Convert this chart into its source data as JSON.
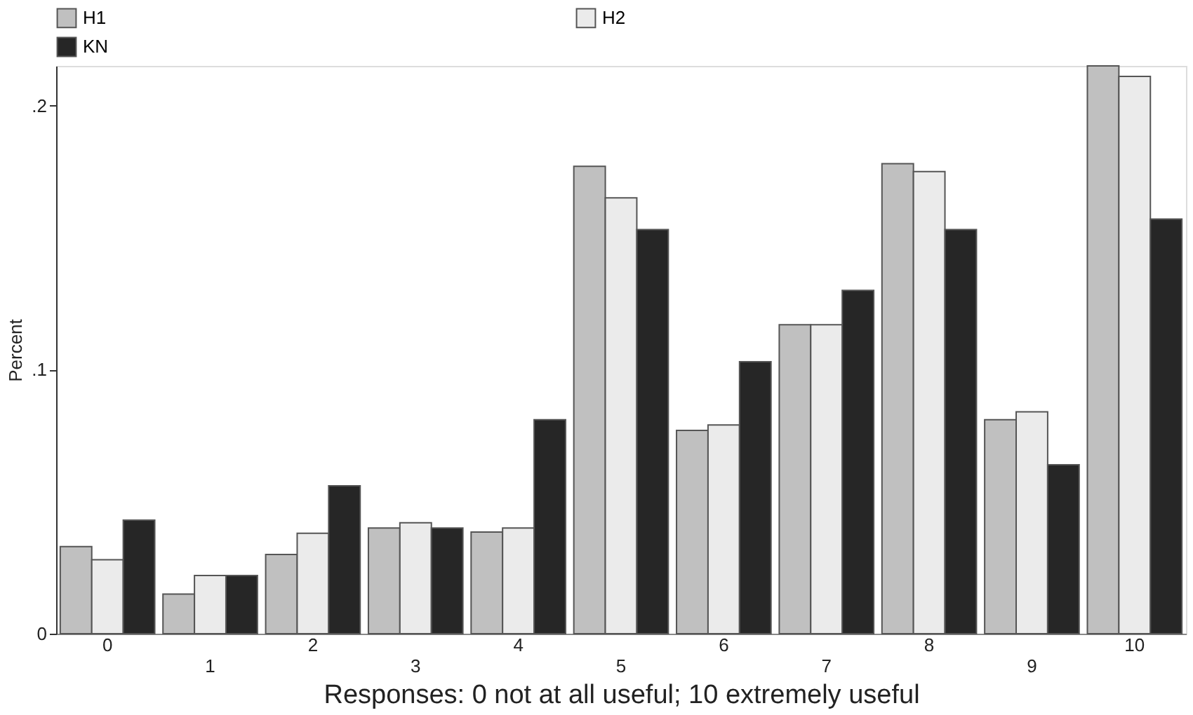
{
  "chart_data": {
    "type": "bar",
    "categories": [
      "0",
      "1",
      "2",
      "3",
      "4",
      "5",
      "6",
      "7",
      "8",
      "9",
      "10"
    ],
    "xlabel": "Responses: 0 not at all useful; 10 extremely useful",
    "ylabel": "Percent",
    "series": [
      {
        "name": "H1",
        "color": "#c0c0c0",
        "values": [
          0.033,
          0.015,
          0.03,
          0.04,
          0.0385,
          0.177,
          0.077,
          0.117,
          0.178,
          0.081,
          0.215
        ]
      },
      {
        "name": "H2",
        "color": "#ebebeb",
        "values": [
          0.028,
          0.022,
          0.038,
          0.042,
          0.04,
          0.165,
          0.079,
          0.117,
          0.175,
          0.084,
          0.211
        ]
      },
      {
        "name": "KN",
        "color": "#262626",
        "values": [
          0.043,
          0.022,
          0.056,
          0.04,
          0.081,
          0.153,
          0.103,
          0.13,
          0.153,
          0.064,
          0.157
        ]
      }
    ],
    "ylim": [
      0,
      0.215
    ],
    "yticks": [
      {
        "value": 0,
        "label": "0"
      },
      {
        "value": 0.1,
        "label": ".1"
      },
      {
        "value": 0.2,
        "label": ".2"
      }
    ],
    "grid": false,
    "legend": "top left"
  }
}
